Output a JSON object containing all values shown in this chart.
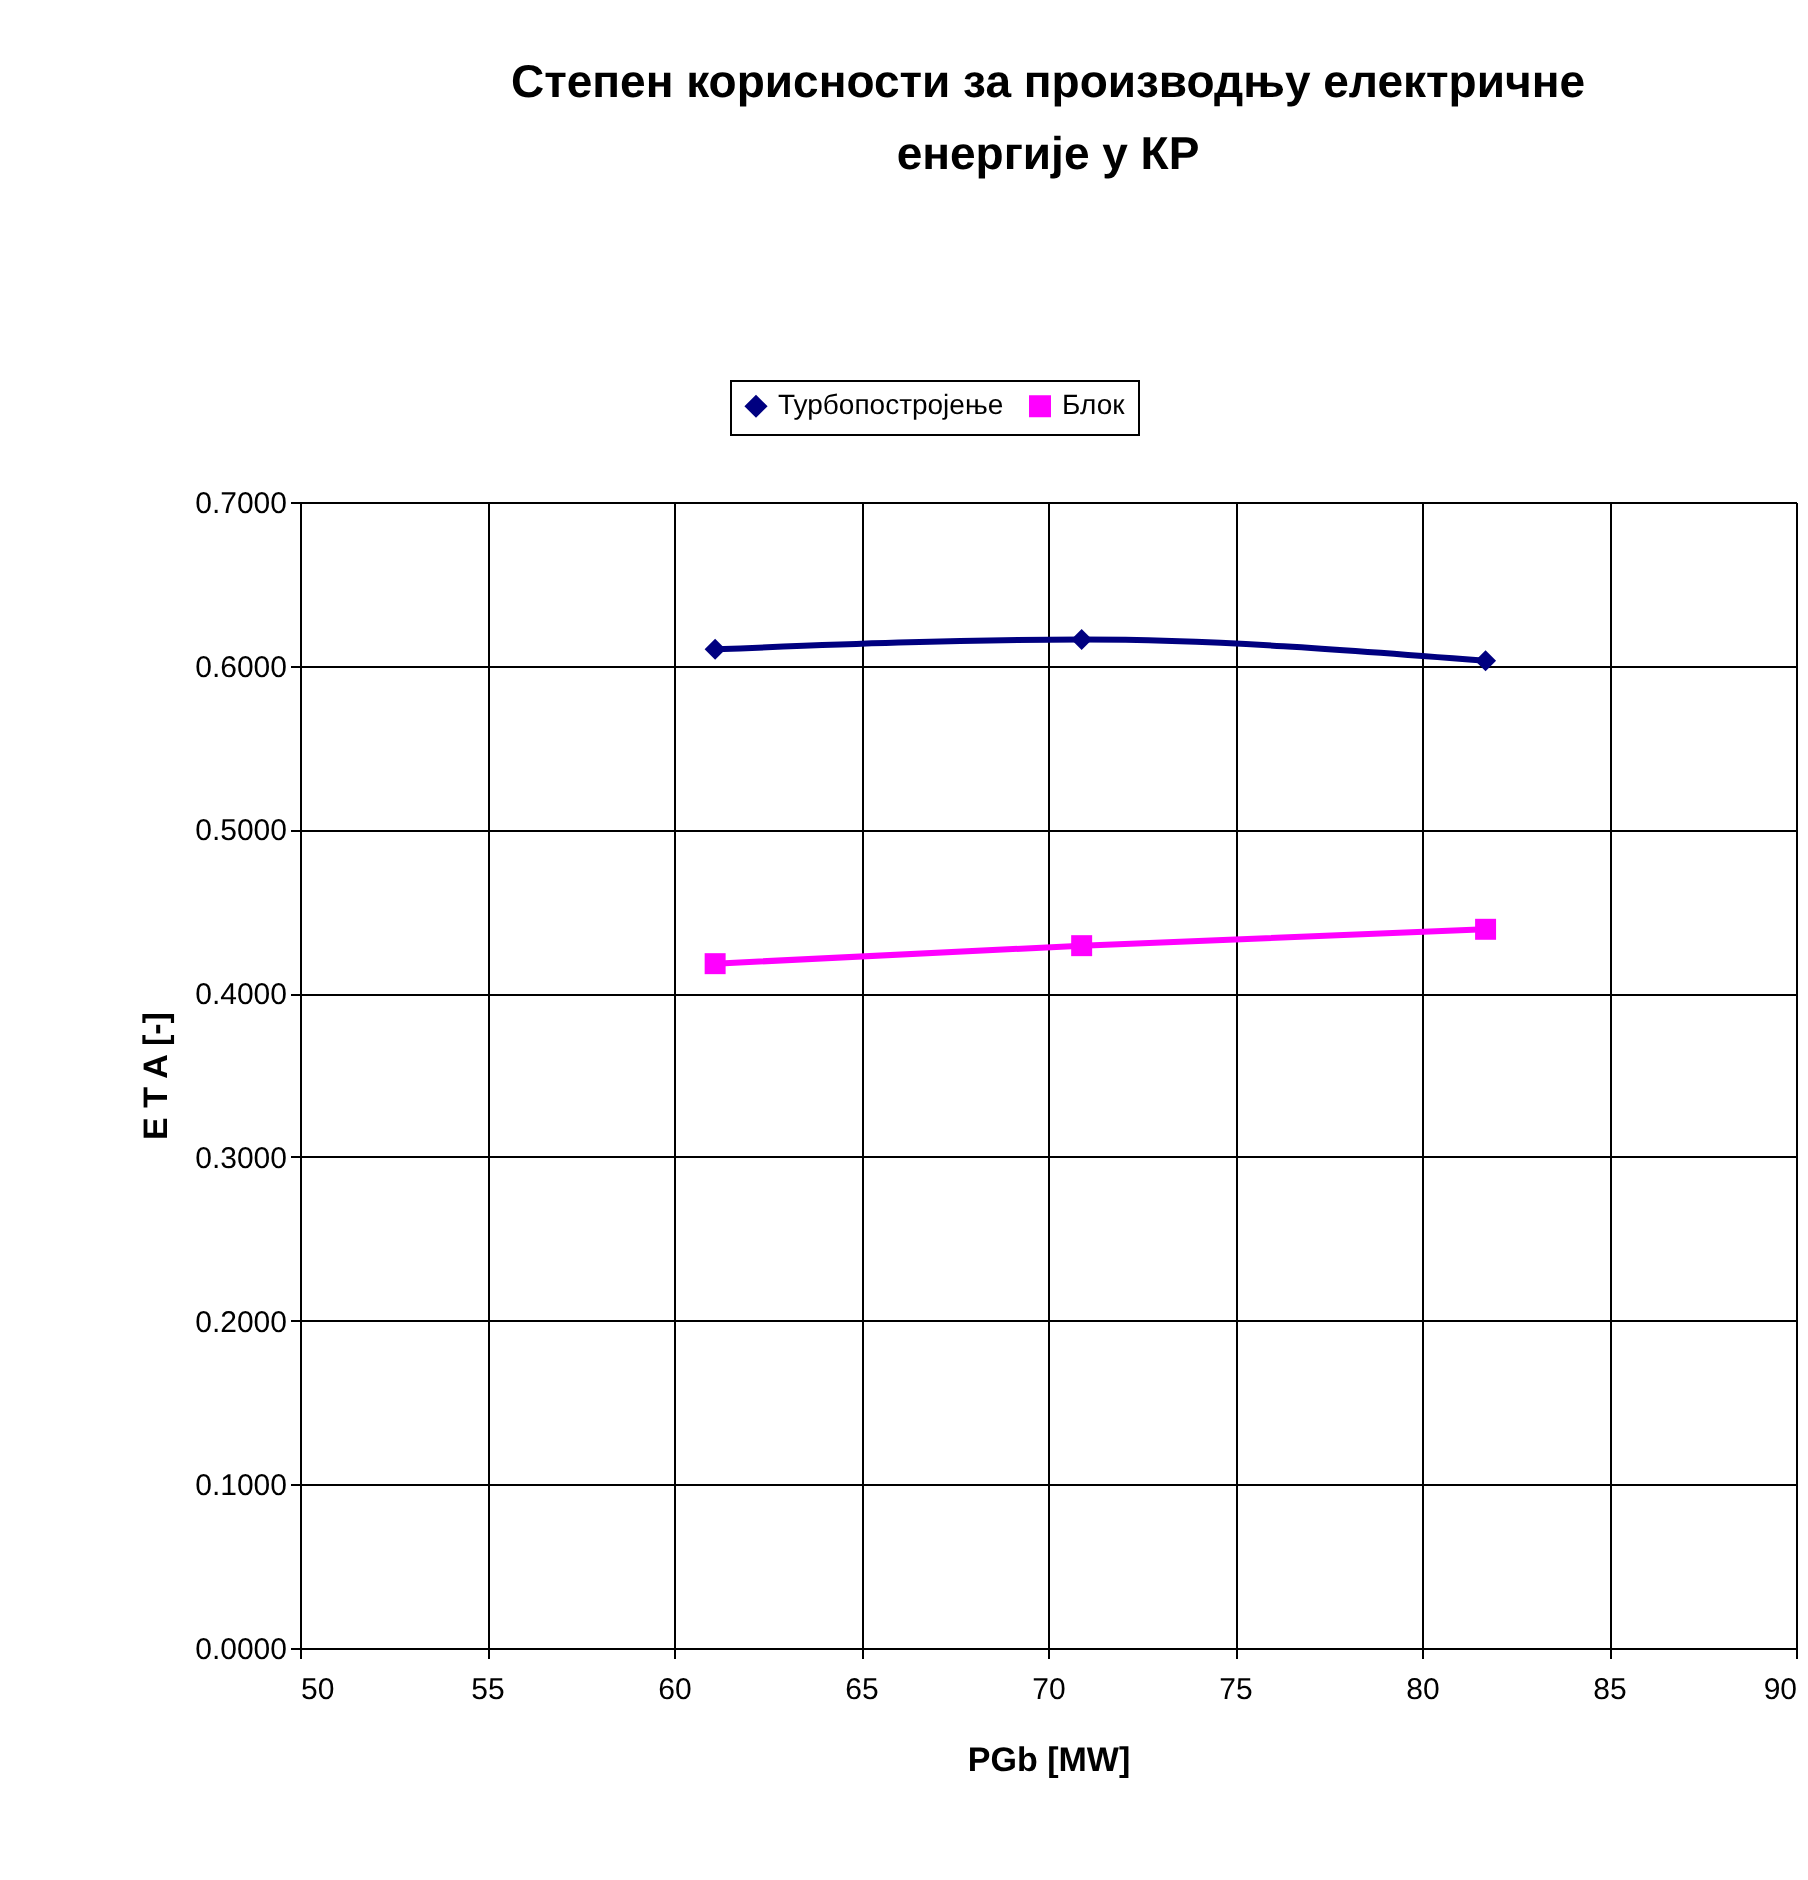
{
  "chart_data": {
    "type": "line",
    "title": "Степен корисности за производњу електричне енергије у КР",
    "xlabel": "PGb [MW]",
    "ylabel": "E T A  [-]",
    "series": [
      {
        "name": "Турбопостројење",
        "color": "#000080",
        "marker": "diamond",
        "x": [
          61.1,
          70.9,
          81.7
        ],
        "values": [
          0.61,
          0.616,
          0.603
        ]
      },
      {
        "name": "Блок",
        "color": "#ff00ff",
        "marker": "square",
        "x": [
          61.1,
          70.9,
          81.7
        ],
        "values": [
          0.418,
          0.429,
          0.439
        ]
      }
    ],
    "xlim": [
      50,
      90
    ],
    "xticks": [
      50,
      55,
      60,
      65,
      70,
      75,
      80,
      85,
      90
    ],
    "ylim": [
      0,
      0.7
    ],
    "yticks": [
      {
        "value": 0,
        "label": "0.0000"
      },
      {
        "value": 0.1,
        "label": "0.1000"
      },
      {
        "value": 0.2,
        "label": "0.2000"
      },
      {
        "value": 0.3,
        "label": "0.3000"
      },
      {
        "value": 0.4,
        "label": "0.4000"
      },
      {
        "value": 0.5,
        "label": "0.5000"
      },
      {
        "value": 0.6,
        "label": "0.6000"
      },
      {
        "value": 0.7,
        "label": "0.7000"
      }
    ],
    "grid": true,
    "legend": "top",
    "line_style": "solid"
  }
}
